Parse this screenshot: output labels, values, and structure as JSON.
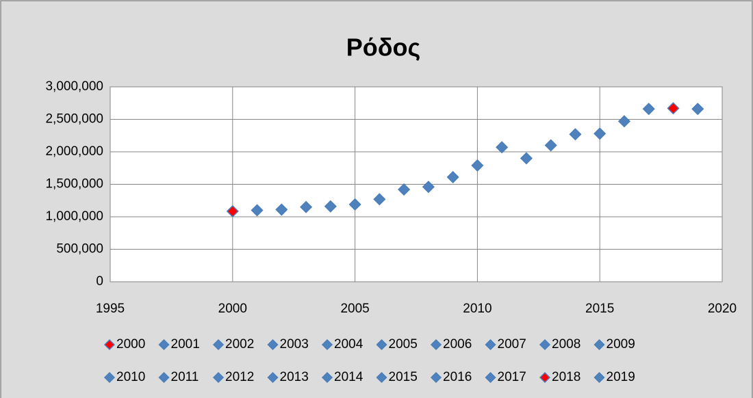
{
  "chart_data": {
    "type": "scatter",
    "title": "Ρόδος",
    "series": [
      {
        "name": "2000",
        "color": "#ff0000",
        "x": [
          2000
        ],
        "values": [
          1085000
        ]
      },
      {
        "name": "2001",
        "color": "#4f81bd",
        "x": [
          2001
        ],
        "values": [
          1100000
        ]
      },
      {
        "name": "2002",
        "color": "#4f81bd",
        "x": [
          2002
        ],
        "values": [
          1110000
        ]
      },
      {
        "name": "2003",
        "color": "#4f81bd",
        "x": [
          2003
        ],
        "values": [
          1150000
        ]
      },
      {
        "name": "2004",
        "color": "#4f81bd",
        "x": [
          2004
        ],
        "values": [
          1160000
        ]
      },
      {
        "name": "2005",
        "color": "#4f81bd",
        "x": [
          2005
        ],
        "values": [
          1190000
        ]
      },
      {
        "name": "2006",
        "color": "#4f81bd",
        "x": [
          2006
        ],
        "values": [
          1270000
        ]
      },
      {
        "name": "2007",
        "color": "#4f81bd",
        "x": [
          2007
        ],
        "values": [
          1420000
        ]
      },
      {
        "name": "2008",
        "color": "#4f81bd",
        "x": [
          2008
        ],
        "values": [
          1460000
        ]
      },
      {
        "name": "2009",
        "color": "#4f81bd",
        "x": [
          2009
        ],
        "values": [
          1610000
        ]
      },
      {
        "name": "2010",
        "color": "#4f81bd",
        "x": [
          2010
        ],
        "values": [
          1790000
        ]
      },
      {
        "name": "2011",
        "color": "#4f81bd",
        "x": [
          2011
        ],
        "values": [
          2070000
        ]
      },
      {
        "name": "2012",
        "color": "#4f81bd",
        "x": [
          2012
        ],
        "values": [
          1900000
        ]
      },
      {
        "name": "2013",
        "color": "#4f81bd",
        "x": [
          2013
        ],
        "values": [
          2100000
        ]
      },
      {
        "name": "2014",
        "color": "#4f81bd",
        "x": [
          2014
        ],
        "values": [
          2270000
        ]
      },
      {
        "name": "2015",
        "color": "#4f81bd",
        "x": [
          2015
        ],
        "values": [
          2280000
        ]
      },
      {
        "name": "2016",
        "color": "#4f81bd",
        "x": [
          2016
        ],
        "values": [
          2470000
        ]
      },
      {
        "name": "2017",
        "color": "#4f81bd",
        "x": [
          2017
        ],
        "values": [
          2660000
        ]
      },
      {
        "name": "2018",
        "color": "#ff0000",
        "x": [
          2018
        ],
        "values": [
          2670000
        ]
      },
      {
        "name": "2019",
        "color": "#4f81bd",
        "x": [
          2019
        ],
        "values": [
          2660000
        ]
      }
    ],
    "xlim": [
      1995,
      2020
    ],
    "xticks": [
      1995,
      2000,
      2005,
      2010,
      2015,
      2020
    ],
    "ylim": [
      0,
      3000000
    ],
    "yticks": [
      0,
      {
        "value": 500000,
        "label": "500,000"
      },
      {
        "value": 1000000,
        "label": "1,000,000"
      },
      {
        "value": 1500000,
        "label": "1,500,000"
      },
      {
        "value": 2000000,
        "label": "2,000,000"
      },
      {
        "value": 2500000,
        "label": "2,500,000"
      },
      {
        "value": 3000000,
        "label": "3,000,000"
      }
    ],
    "grid": true,
    "legend": "bottom"
  }
}
